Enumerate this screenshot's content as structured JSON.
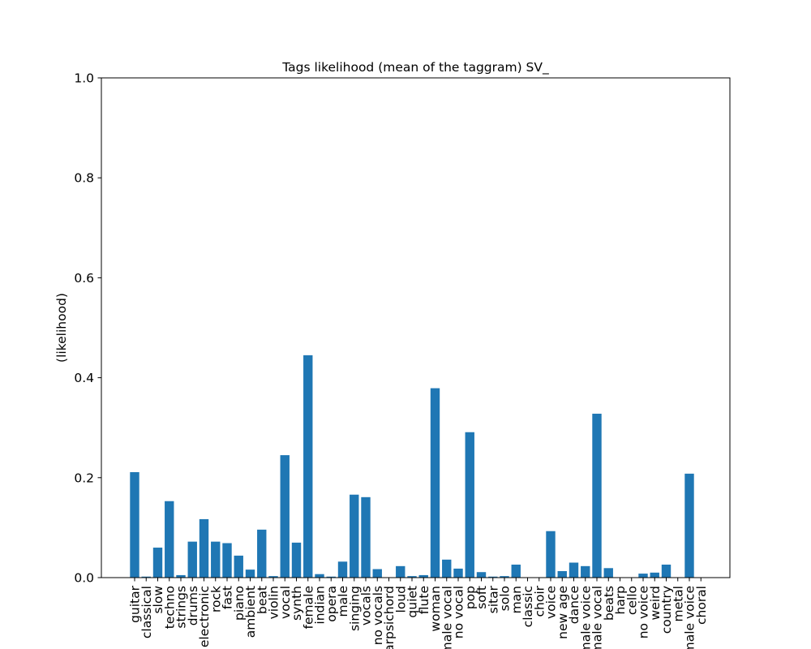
{
  "chart_data": {
    "type": "bar",
    "title": "Tags likelihood (mean of the taggram) SV_",
    "xlabel": "",
    "ylabel": "(likelihood)",
    "ylim": [
      0,
      1.0
    ],
    "yticks": [
      "0.0",
      "0.2",
      "0.4",
      "0.6",
      "0.8",
      "1.0"
    ],
    "grid": false,
    "bar_color": "#1f77b4",
    "categories": [
      "guitar",
      "classical",
      "slow",
      "techno",
      "strings",
      "drums",
      "electronic",
      "rock",
      "fast",
      "piano",
      "ambient",
      "beat",
      "violin",
      "vocal",
      "synth",
      "female",
      "indian",
      "opera",
      "male",
      "singing",
      "vocals",
      "no vocals",
      "harpsichord",
      "loud",
      "quiet",
      "flute",
      "woman",
      "male vocal",
      "no vocal",
      "pop",
      "soft",
      "sitar",
      "solo",
      "man",
      "classic",
      "choir",
      "voice",
      "new age",
      "dance",
      "male voice",
      "female vocal",
      "beats",
      "harp",
      "cello",
      "no voice",
      "weird",
      "country",
      "metal",
      "female voice",
      "choral"
    ],
    "values": [
      0.211,
      0.002,
      0.06,
      0.153,
      0.005,
      0.072,
      0.117,
      0.072,
      0.069,
      0.044,
      0.016,
      0.096,
      0.003,
      0.245,
      0.07,
      0.445,
      0.007,
      0.002,
      0.032,
      0.166,
      0.161,
      0.017,
      0.0,
      0.023,
      0.003,
      0.005,
      0.379,
      0.036,
      0.018,
      0.291,
      0.011,
      0.002,
      0.003,
      0.026,
      0.0,
      0.0,
      0.093,
      0.013,
      0.03,
      0.023,
      0.328,
      0.019,
      0.0,
      0.0,
      0.008,
      0.01,
      0.026,
      0.0,
      0.208,
      0.0
    ]
  }
}
